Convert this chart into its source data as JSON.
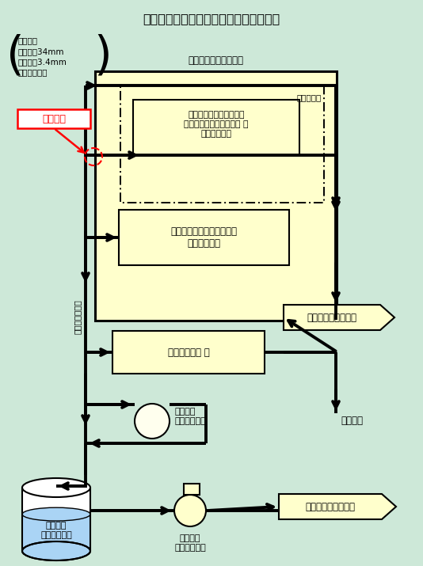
{
  "title": "伊方発電所２号機　補助蒸気系統概略図",
  "bg_color": "#cde8d8",
  "yellow_fill": "#ffffcc",
  "pipe_lw": 2.8,
  "spec_line1": "配管仕様",
  "spec_line2": "外径：約34mm",
  "spec_line3": "肉厚：約3.4mm",
  "spec_line4": "材質：炭素鋼",
  "toukyo_text": "当該箇所",
  "asphalt_plant_label": "アスファルト固化装置",
  "kanri_label": "管理区域外",
  "tank_label": "アスファルト貯蔵タンク\nアスファルト供給タンク 等\n（屋外設備）",
  "solidify_label": "アスファルト固化装置本体\n（屋内設備）",
  "waste_label": "廃液蒸発装置 等",
  "monitor_label": "補助蒸気\nドレンモニタ",
  "drain_tank_label": "補助蒸気\nドレンタンク",
  "pump_label": "補助蒸気\nドレンポンプ",
  "sc1_label": "スチームコンバータ",
  "sc2_label": "スチームコンバータ",
  "hojo_label": "補助蒸気ドレン",
  "kucho_label": "空調設備"
}
